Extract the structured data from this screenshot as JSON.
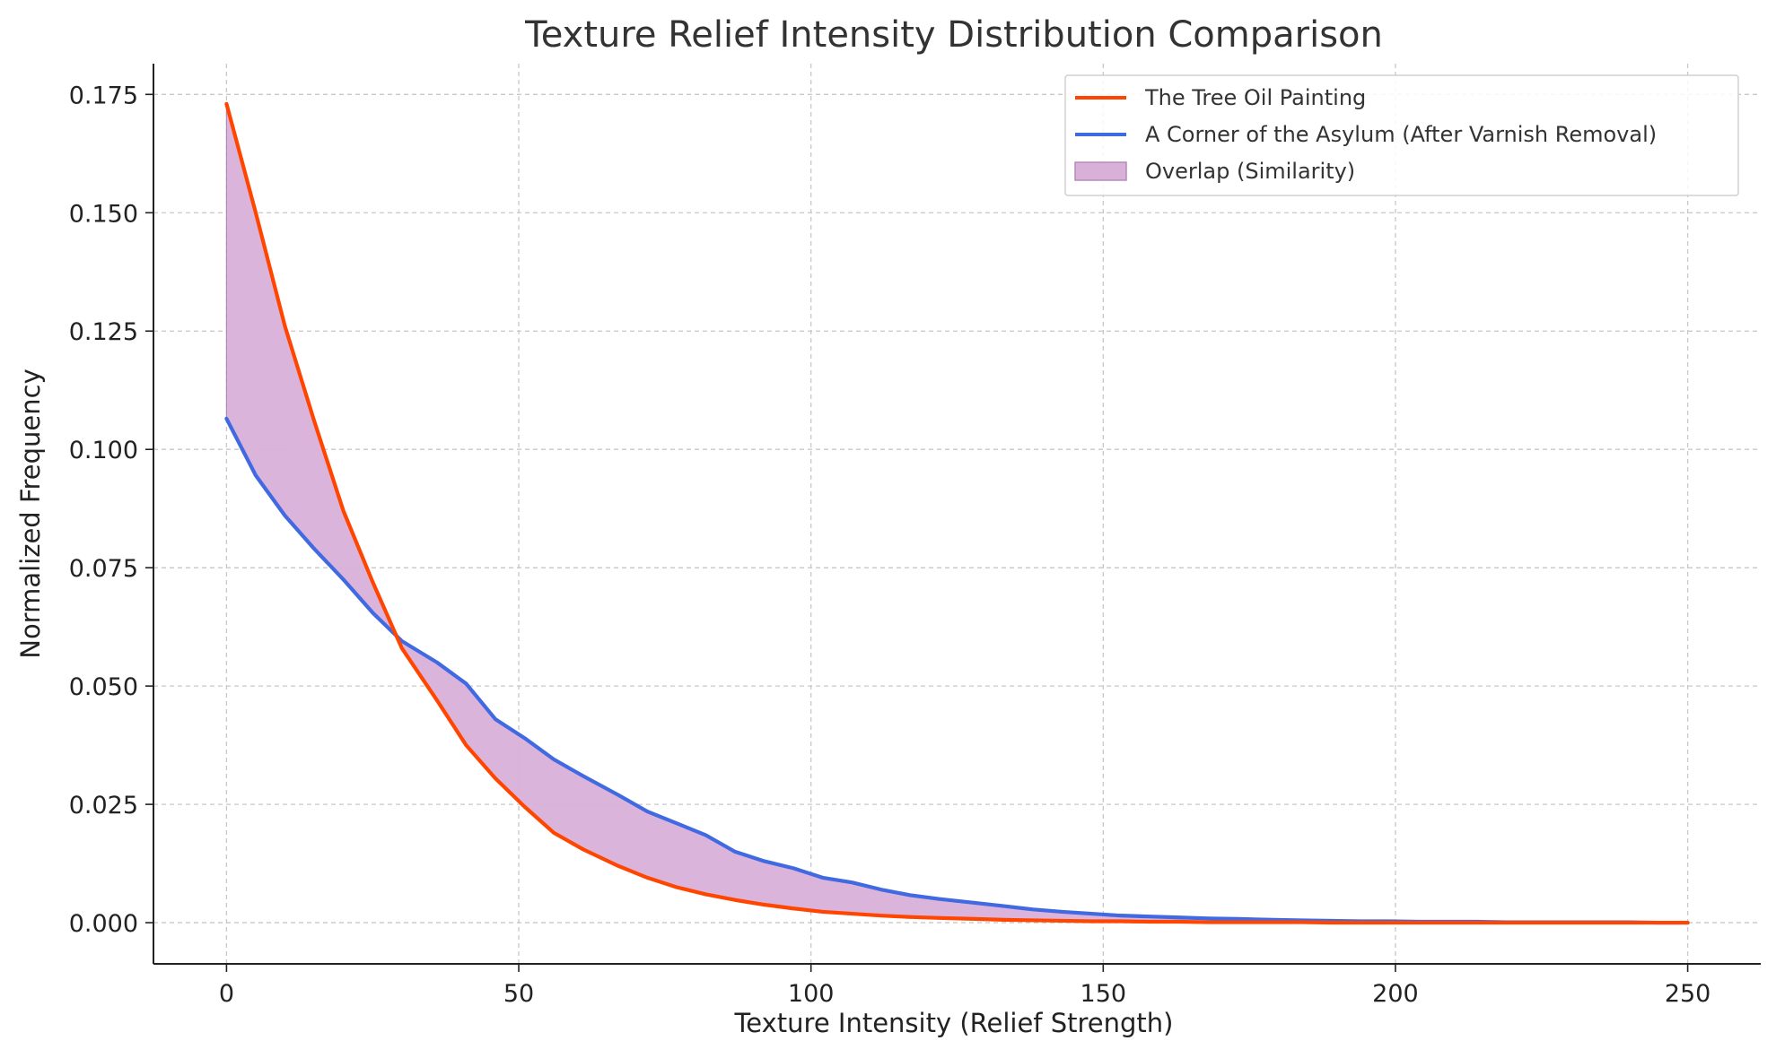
{
  "chart_data": {
    "type": "line",
    "title": "Texture Relief Intensity Distribution Comparison",
    "xlabel": "Texture Intensity (Relief Strength)",
    "ylabel": "Normalized Frequency",
    "xlim": [
      -12.5,
      262.5
    ],
    "ylim": [
      -0.0087,
      0.1815
    ],
    "xticks": [
      0,
      50,
      100,
      150,
      200,
      250
    ],
    "yticks": [
      0.0,
      0.025,
      0.05,
      0.075,
      0.1,
      0.125,
      0.15,
      0.175
    ],
    "xtick_labels": [
      "0",
      "50",
      "100",
      "150",
      "200",
      "250"
    ],
    "ytick_labels": [
      "0.000",
      "0.025",
      "0.050",
      "0.075",
      "0.100",
      "0.125",
      "0.150",
      "0.175"
    ],
    "grid": true,
    "legend_position": "top-right",
    "x": [
      0,
      5,
      10,
      15,
      20,
      25,
      30,
      36,
      41,
      46,
      51,
      56,
      61,
      67,
      72,
      77,
      82,
      87,
      92,
      97,
      102,
      107,
      112,
      117,
      122,
      128,
      133,
      138,
      143,
      148,
      153,
      158,
      163,
      168,
      173,
      179,
      184,
      189,
      194,
      199,
      204,
      209,
      214,
      219,
      224,
      230,
      235,
      240,
      245,
      250
    ],
    "series": [
      {
        "name": "The Tree Oil Painting",
        "color": "#ff4500",
        "values": [
          0.173,
          0.15,
          0.126,
          0.106,
          0.087,
          0.072,
          0.058,
          0.047,
          0.0375,
          0.0305,
          0.0245,
          0.019,
          0.0155,
          0.012,
          0.0095,
          0.0075,
          0.006,
          0.0048,
          0.0038,
          0.003,
          0.0023,
          0.0019,
          0.0015,
          0.0012,
          0.001,
          0.0008,
          0.0006,
          0.0005,
          0.0004,
          0.0003,
          0.0003,
          0.0002,
          0.0002,
          0.0001,
          0.0001,
          0.0001,
          0.0001,
          0.0,
          0.0,
          0.0,
          0.0,
          0.0,
          0.0,
          0.0,
          0.0,
          0.0,
          0.0,
          0.0,
          0.0,
          0.0
        ]
      },
      {
        "name": "A Corner of the Asylum (After Varnish Removal)",
        "color": "#4169e1",
        "values": [
          0.1065,
          0.0945,
          0.086,
          0.079,
          0.0725,
          0.0655,
          0.0595,
          0.055,
          0.0505,
          0.043,
          0.039,
          0.0345,
          0.031,
          0.027,
          0.0235,
          0.021,
          0.0185,
          0.015,
          0.013,
          0.0115,
          0.0095,
          0.0085,
          0.007,
          0.0058,
          0.005,
          0.0042,
          0.0035,
          0.0028,
          0.0023,
          0.0019,
          0.0015,
          0.0013,
          0.0011,
          0.0009,
          0.0008,
          0.0006,
          0.0005,
          0.0004,
          0.0003,
          0.0003,
          0.0002,
          0.0002,
          0.0002,
          0.0001,
          0.0001,
          0.0001,
          0.0001,
          0.0001,
          0.0,
          0.0
        ]
      }
    ],
    "fill_between": {
      "name": "Overlap (Similarity)",
      "color": "#d8b0d8",
      "edge_color": "#b68ab8"
    }
  }
}
